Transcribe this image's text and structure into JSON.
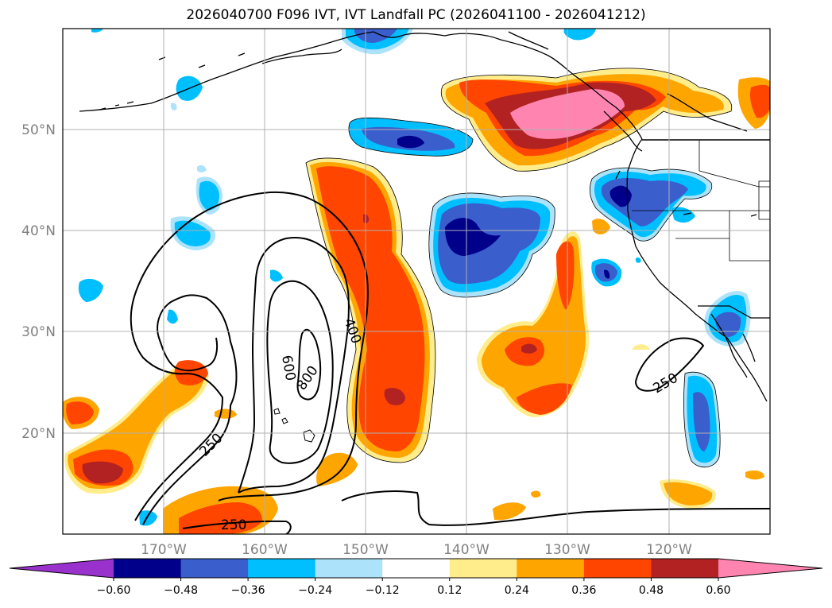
{
  "title": "2026040700 F096 IVT, IVT Landfall PC (2026041100 - 2026041212)",
  "lat_labels": [
    "50°N",
    "40°N",
    "30°N",
    "20°N"
  ],
  "lon_labels": [
    "170°W",
    "160°W",
    "150°W",
    "140°W",
    "130°W",
    "120°W"
  ],
  "contour_labels": [
    "250",
    "250",
    "250",
    "400",
    "600",
    "800"
  ],
  "colorbar": {
    "colors": [
      "#9932CC",
      "#00008B",
      "#3A5ECC",
      "#00BFFF",
      "#ADE3FA",
      "#FFFFFF",
      "#FFEC8B",
      "#FFA500",
      "#FF4500",
      "#B22222",
      "#FF85B0"
    ],
    "labels": [
      "−0.60",
      "−0.48",
      "−0.36",
      "−0.24",
      "−0.12",
      "0.12",
      "0.24",
      "0.36",
      "0.48",
      "0.60"
    ]
  }
}
